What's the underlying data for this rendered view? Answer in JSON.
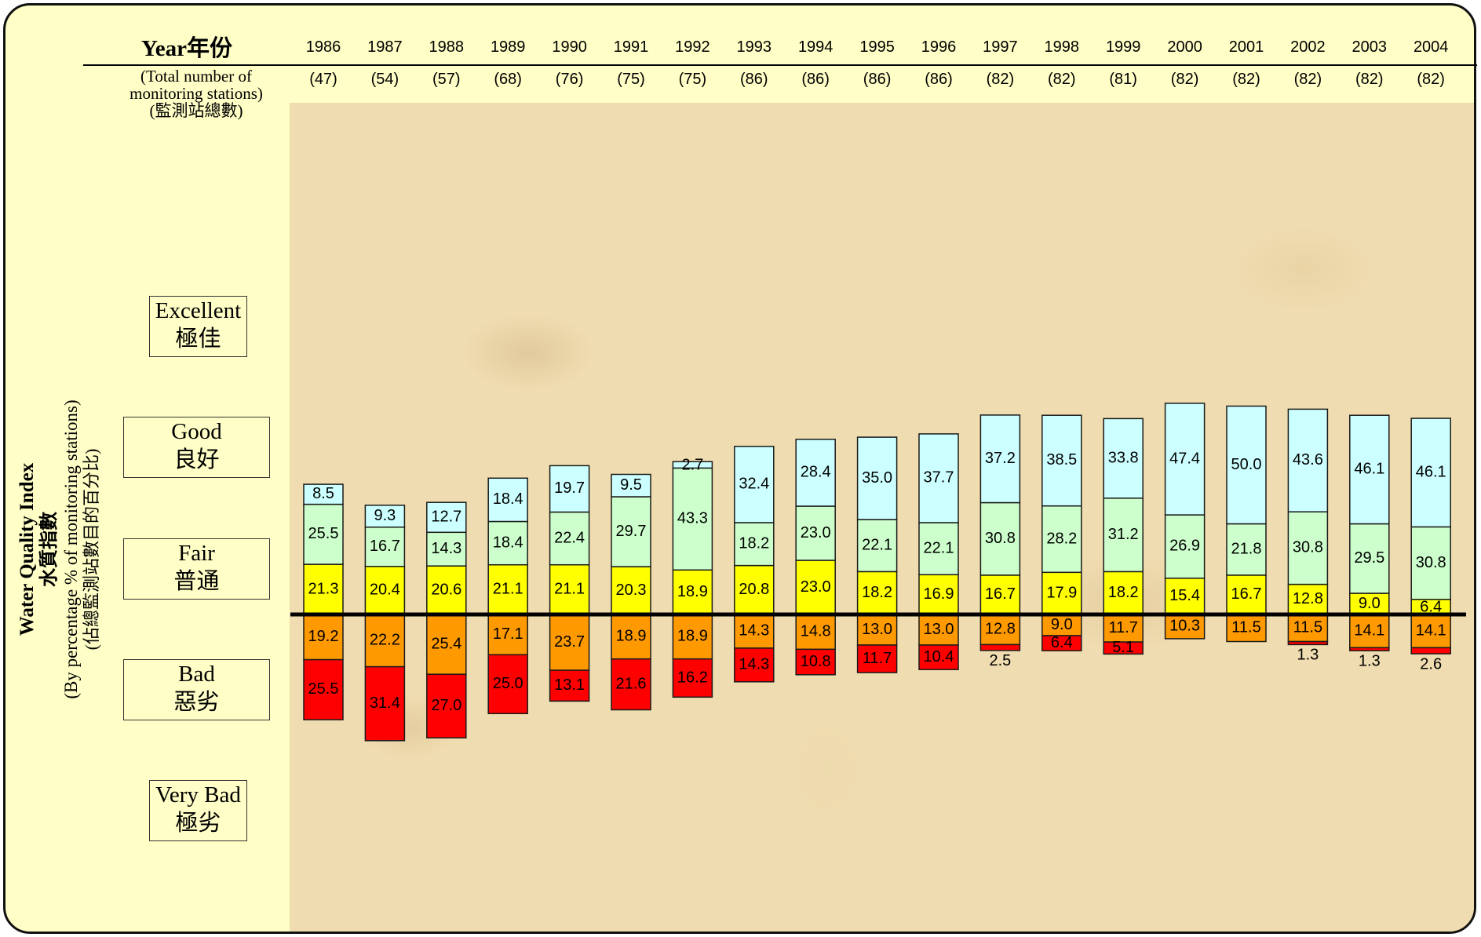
{
  "header": {
    "year_title": "Year年份",
    "stations_label": [
      "(Total number of",
      "monitoring stations)",
      "(監測站總數)"
    ]
  },
  "legend": {
    "excellent": [
      "Excellent",
      "極佳"
    ],
    "good": [
      "Good",
      "良好"
    ],
    "fair": [
      "Fair",
      "普通"
    ],
    "bad": [
      "Bad",
      "惡劣"
    ],
    "very_bad": [
      "Very Bad",
      "極劣"
    ]
  },
  "ylabel": {
    "line1": "Water Quality Index",
    "line2": "水質指數",
    "line3": "(By percentage % of monitoring stations)",
    "line4": "(佔總監測站數目的百分比)"
  },
  "colors": {
    "excellent": "#ccffff",
    "good": "#ccffcc",
    "fair": "#ffff00",
    "bad": "#ff9900",
    "very_bad": "#ff0000",
    "frame_background": "#fefec6"
  },
  "chart_data": {
    "type": "bar",
    "stacking": "diverging",
    "baseline": "between Fair and Bad",
    "categories": [
      "1986",
      "1987",
      "1988",
      "1989",
      "1990",
      "1991",
      "1992",
      "1993",
      "1994",
      "1995",
      "1996",
      "1997",
      "1998",
      "1999",
      "2000",
      "2001",
      "2002",
      "2003",
      "2004"
    ],
    "station_counts": [
      "(47)",
      "(54)",
      "(57)",
      "(68)",
      "(76)",
      "(75)",
      "(75)",
      "(86)",
      "(86)",
      "(86)",
      "(86)",
      "(82)",
      "(82)",
      "(81)",
      "(82)",
      "(82)",
      "(82)",
      "(82)",
      "(82)"
    ],
    "series": [
      {
        "name": "Excellent 極佳",
        "key": "excellent",
        "direction": "up",
        "values": [
          8.5,
          9.3,
          12.7,
          18.4,
          19.7,
          9.5,
          2.7,
          32.4,
          28.4,
          35.0,
          37.7,
          37.2,
          38.5,
          33.8,
          47.4,
          50.0,
          43.6,
          46.1,
          46.1
        ]
      },
      {
        "name": "Good 良好",
        "key": "good",
        "direction": "up",
        "values": [
          25.5,
          16.7,
          14.3,
          18.4,
          22.4,
          29.7,
          43.3,
          18.2,
          23.0,
          22.1,
          22.1,
          30.8,
          28.2,
          31.2,
          26.9,
          21.8,
          30.8,
          29.5,
          30.8
        ]
      },
      {
        "name": "Fair 普通",
        "key": "fair",
        "direction": "up",
        "values": [
          21.3,
          20.4,
          20.6,
          21.1,
          21.1,
          20.3,
          18.9,
          20.8,
          23.0,
          18.2,
          16.9,
          16.7,
          17.9,
          18.2,
          15.4,
          16.7,
          12.8,
          9.0,
          6.4
        ]
      },
      {
        "name": "Bad 惡劣",
        "key": "bad",
        "direction": "down",
        "values": [
          19.2,
          22.2,
          25.4,
          17.1,
          23.7,
          18.9,
          18.9,
          14.3,
          14.8,
          13.0,
          13.0,
          12.8,
          9.0,
          11.7,
          10.3,
          11.5,
          11.5,
          14.1,
          14.1
        ]
      },
      {
        "name": "Very Bad 極劣",
        "key": "very_bad",
        "direction": "down",
        "values": [
          25.5,
          31.4,
          27.0,
          25.0,
          13.1,
          21.6,
          16.2,
          14.3,
          10.8,
          11.7,
          10.4,
          2.5,
          6.4,
          5.1,
          null,
          null,
          1.3,
          1.3,
          2.6
        ]
      }
    ],
    "value_labels": {
      "excellent": [
        "8.5",
        "9.3",
        "12.7",
        "18.4",
        "19.7",
        "9.5",
        "2.7",
        "32.4",
        "28.4",
        "35.0",
        "37.7",
        "37.2",
        "38.5",
        "33.8",
        "47.4",
        "50.0",
        "43.6",
        "46.1",
        "46.1"
      ],
      "good": [
        "25.5",
        "16.7",
        "14.3",
        "18.4",
        "22.4",
        "29.7",
        "43.3",
        "18.2",
        "23.0",
        "22.1",
        "22.1",
        "30.8",
        "28.2",
        "31.2",
        "26.9",
        "21.8",
        "30.8",
        "29.5",
        "30.8"
      ],
      "fair": [
        "21.3",
        "20.4",
        "20.6",
        "21.1",
        "21.1",
        "20.3",
        "18.9",
        "20.8",
        "23.0",
        "18.2",
        "16.9",
        "16.7",
        "17.9",
        "18.2",
        "15.4",
        "16.7",
        "12.8",
        "9.0",
        "6.4"
      ],
      "bad": [
        "19.2",
        "22.2",
        "25.4",
        "17.1",
        "23.7",
        "18.9",
        "18.9",
        "14.3",
        "14.8",
        "13.0",
        "13.0",
        "12.8",
        "9.0",
        "11.7",
        "10.3",
        "11.5",
        "11.5",
        "14.1",
        "14.1"
      ],
      "very_bad": [
        "25.5",
        "31.4",
        "27.0",
        "25.0",
        "13.1",
        "21.6",
        "16.2",
        "14.3",
        "10.8",
        "11.7",
        "10.4",
        "2.5",
        "6.4",
        "5.1",
        "",
        "",
        "1.3",
        "1.3",
        "2.6"
      ]
    },
    "title": "",
    "xlabel": "Year年份",
    "ylabel": "Water Quality Index 水質指數 (By percentage % of monitoring stations) (佔總監測站數目的百分比)",
    "grid": false,
    "legend_position": "left"
  }
}
